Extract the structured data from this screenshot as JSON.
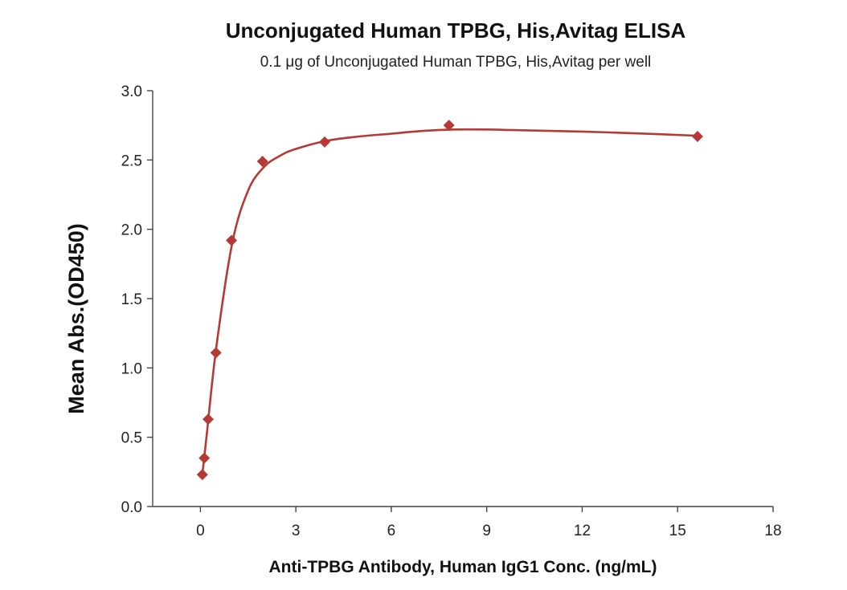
{
  "chart_data": {
    "type": "scatter",
    "title": "Unconjugated Human TPBG, His,Avitag ELISA",
    "subtitle": "0.1 μg of Unconjugated Human TPBG, His,Avitag per well",
    "xlabel": "Anti-TPBG Antibody, Human IgG1 Conc. (ng/mL)",
    "ylabel": "Mean Abs.(OD450)",
    "xlim": [
      -1.5,
      18
    ],
    "ylim": [
      0,
      3.0
    ],
    "x_ticks": [
      0,
      3,
      6,
      9,
      12,
      15,
      18
    ],
    "y_ticks": [
      0.0,
      0.5,
      1.0,
      1.5,
      2.0,
      2.5,
      3.0
    ],
    "x_tick_labels": [
      "0",
      "3",
      "6",
      "9",
      "12",
      "15",
      "18"
    ],
    "y_tick_labels": [
      "0.0",
      "0.5",
      "1.0",
      "1.5",
      "2.0",
      "2.5",
      "3.0"
    ],
    "grid": false,
    "marker": "diamond",
    "color": "#b53a35",
    "series": [
      {
        "x": [
          0.061,
          0.122,
          0.244,
          0.488,
          0.977,
          1.953,
          3.906,
          7.813,
          15.625
        ],
        "y": [
          0.23,
          0.35,
          0.63,
          1.11,
          1.92,
          2.49,
          2.63,
          2.75,
          2.67
        ]
      }
    ],
    "fit_curve": {
      "x": [
        0.061,
        0.2,
        0.5,
        1.0,
        1.5,
        2.0,
        2.5,
        3.0,
        4.0,
        5.0,
        6.0,
        7.0,
        8.0,
        9.0,
        10.0,
        12.0,
        14.0,
        15.625
      ],
      "y": [
        0.23,
        0.52,
        1.15,
        1.9,
        2.28,
        2.45,
        2.53,
        2.58,
        2.64,
        2.67,
        2.69,
        2.71,
        2.72,
        2.72,
        2.715,
        2.705,
        2.69,
        2.675
      ]
    }
  }
}
